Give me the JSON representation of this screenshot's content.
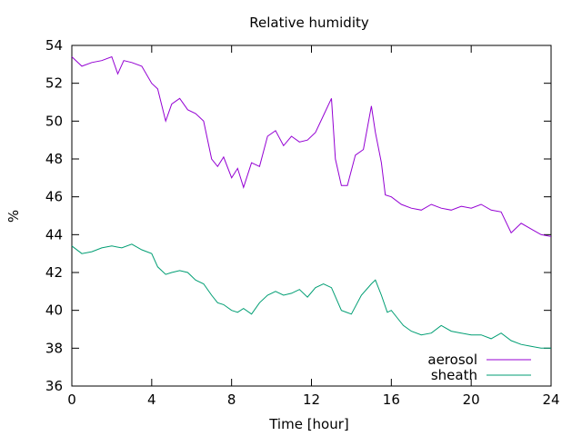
{
  "chart_data": {
    "type": "line",
    "title": "Relative humidity",
    "xlabel": "Time [hour]",
    "ylabel": "%",
    "xlim": [
      0,
      24
    ],
    "ylim": [
      36,
      54
    ],
    "xticks": [
      0,
      4,
      8,
      12,
      16,
      20,
      24
    ],
    "yticks": [
      36,
      38,
      40,
      42,
      44,
      46,
      48,
      50,
      52,
      54
    ],
    "grid": false,
    "legend_position": "bottom-right",
    "series": [
      {
        "name": "aerosol",
        "color": "#9400d3",
        "x": [
          0,
          0.5,
          1,
          1.5,
          2,
          2.3,
          2.6,
          3,
          3.5,
          4,
          4.3,
          4.7,
          5,
          5.4,
          5.8,
          6.2,
          6.6,
          7,
          7.3,
          7.6,
          8,
          8.3,
          8.6,
          9,
          9.4,
          9.8,
          10.2,
          10.6,
          11,
          11.4,
          11.8,
          12.2,
          12.6,
          13,
          13.2,
          13.5,
          13.8,
          14.2,
          14.6,
          15,
          15.2,
          15.5,
          15.7,
          16,
          16.5,
          17,
          17.5,
          18,
          18.5,
          19,
          19.5,
          20,
          20.5,
          21,
          21.5,
          22,
          22.5,
          23,
          23.5,
          24
        ],
        "y": [
          53.4,
          52.9,
          53.1,
          53.2,
          53.4,
          52.5,
          53.2,
          53.1,
          52.9,
          52.0,
          51.7,
          50.0,
          50.9,
          51.2,
          50.6,
          50.4,
          50.0,
          48.0,
          47.6,
          48.1,
          47.0,
          47.5,
          46.5,
          47.8,
          47.6,
          49.2,
          49.5,
          48.7,
          49.2,
          48.9,
          49.0,
          49.4,
          50.3,
          51.2,
          48.0,
          46.6,
          46.6,
          48.2,
          48.5,
          50.8,
          49.4,
          47.8,
          46.1,
          46.0,
          45.6,
          45.4,
          45.3,
          45.6,
          45.4,
          45.3,
          45.5,
          45.4,
          45.6,
          45.3,
          45.2,
          44.1,
          44.6,
          44.3,
          44.0,
          43.9
        ]
      },
      {
        "name": "sheath",
        "color": "#009e73",
        "x": [
          0,
          0.5,
          1,
          1.5,
          2,
          2.5,
          3,
          3.5,
          4,
          4.3,
          4.7,
          5,
          5.4,
          5.8,
          6.2,
          6.6,
          7,
          7.3,
          7.6,
          8,
          8.3,
          8.6,
          9,
          9.4,
          9.8,
          10.2,
          10.6,
          11,
          11.4,
          11.8,
          12.2,
          12.6,
          13,
          13.5,
          14,
          14.5,
          15,
          15.2,
          15.5,
          15.8,
          16,
          16.3,
          16.6,
          17,
          17.5,
          18,
          18.5,
          19,
          19.5,
          20,
          20.5,
          21,
          21.5,
          22,
          22.5,
          23,
          23.5,
          24
        ],
        "y": [
          43.4,
          43.0,
          43.1,
          43.3,
          43.4,
          43.3,
          43.5,
          43.2,
          43.0,
          42.3,
          41.9,
          42.0,
          42.1,
          42.0,
          41.6,
          41.4,
          40.8,
          40.4,
          40.3,
          40.0,
          39.9,
          40.1,
          39.8,
          40.4,
          40.8,
          41.0,
          40.8,
          40.9,
          41.1,
          40.7,
          41.2,
          41.4,
          41.2,
          40.0,
          39.8,
          40.8,
          41.4,
          41.6,
          40.8,
          39.9,
          40.0,
          39.6,
          39.2,
          38.9,
          38.7,
          38.8,
          39.2,
          38.9,
          38.8,
          38.7,
          38.7,
          38.5,
          38.8,
          38.4,
          38.2,
          38.1,
          38.0,
          38.0
        ]
      }
    ]
  }
}
